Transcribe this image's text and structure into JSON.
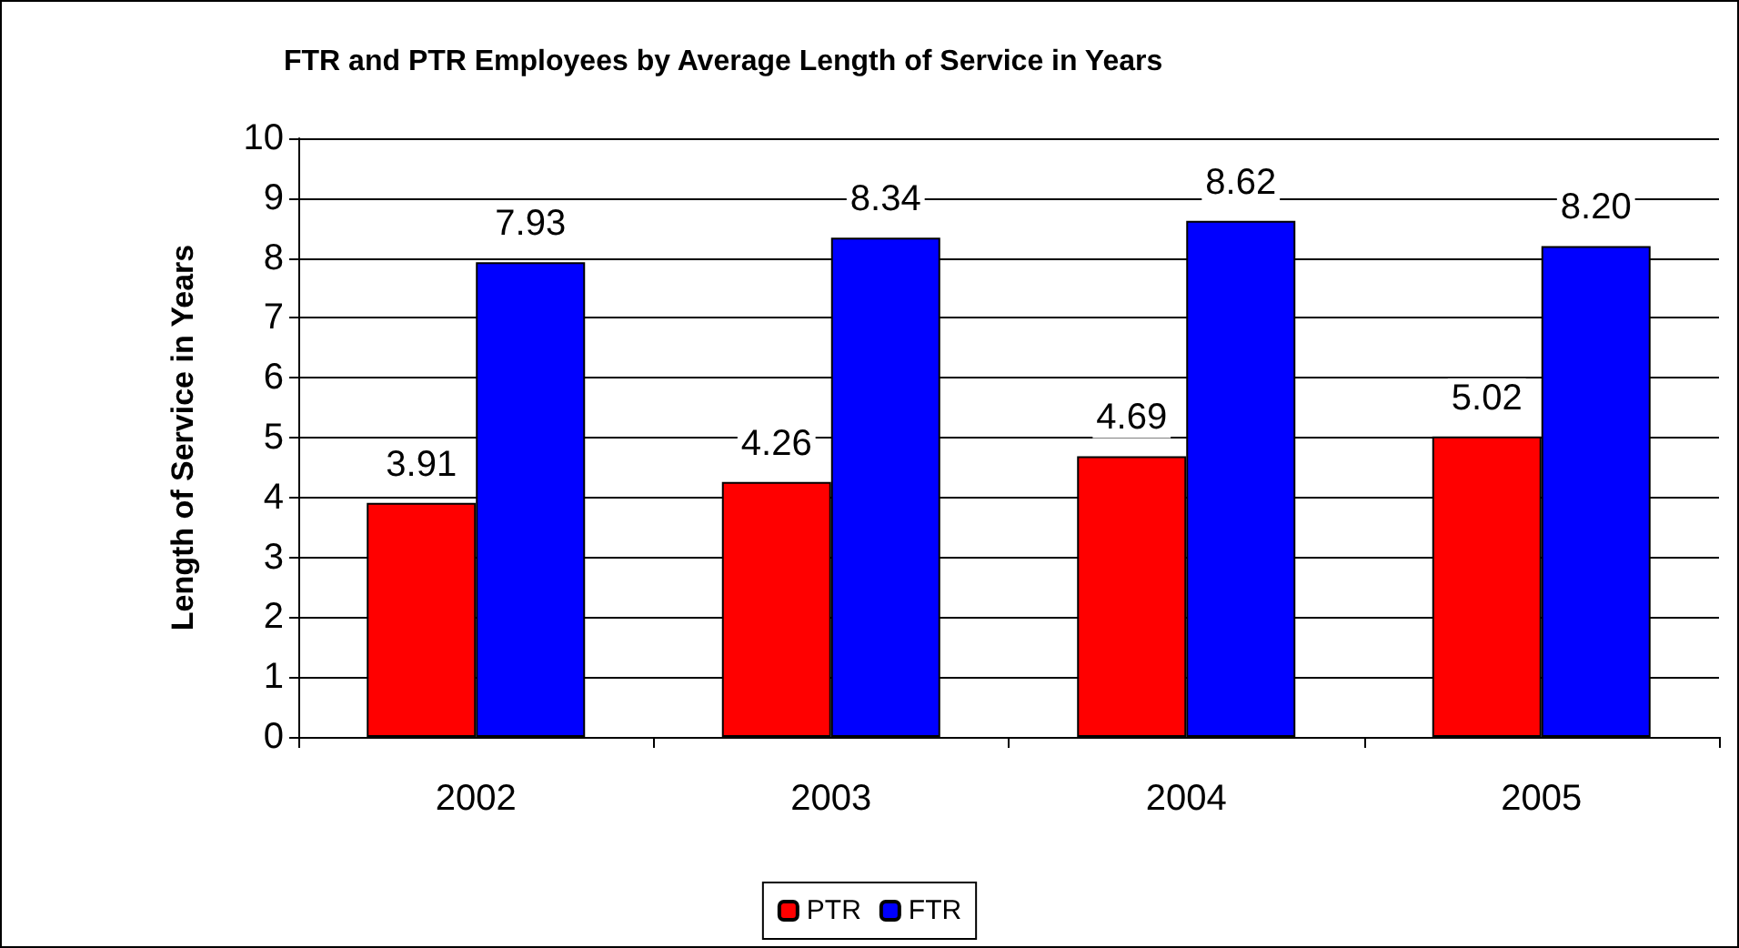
{
  "chart_data": {
    "type": "bar",
    "title": "FTR and PTR Employees by Average Length of Service in Years",
    "ylabel": "Length of Service in Years",
    "categories": [
      "2002",
      "2003",
      "2004",
      "2005"
    ],
    "series": [
      {
        "name": "PTR",
        "color": "#ff0000",
        "values": [
          3.91,
          4.26,
          4.69,
          5.02
        ],
        "value_labels": [
          "3.91",
          "4.26",
          "4.69",
          "5.02"
        ]
      },
      {
        "name": "FTR",
        "color": "#0000ff",
        "values": [
          7.93,
          8.34,
          8.62,
          8.2
        ],
        "value_labels": [
          "7.93",
          "8.34",
          "8.62",
          "8.20"
        ]
      }
    ],
    "ylim": [
      0,
      10
    ],
    "yticks": [
      0,
      1,
      2,
      3,
      4,
      5,
      6,
      7,
      8,
      9,
      10
    ],
    "grid": "y",
    "legend": "bottom"
  }
}
